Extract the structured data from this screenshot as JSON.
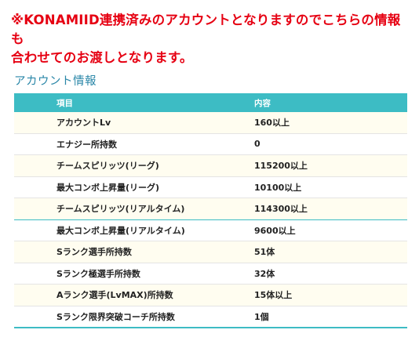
{
  "notice": {
    "line1": "※KONAMIID連携済みのアカウントとなりますのでこちらの情報も",
    "line2": "合わせてのお渡しとなります。"
  },
  "section": {
    "title": "アカウント情報"
  },
  "table": {
    "headers": {
      "item": "項目",
      "value": "内容"
    },
    "rows": [
      {
        "item": "アカウントLv",
        "value": "160以上"
      },
      {
        "item": "エナジー所持数",
        "value": "0"
      },
      {
        "item": "チームスピリッツ(リーグ)",
        "value": "115200以上"
      },
      {
        "item": "最大コンボ上昇量(リーグ)",
        "value": "10100以上"
      },
      {
        "item": "チームスピリッツ(リアルタイム)",
        "value": "114300以上"
      },
      {
        "item": "最大コンボ上昇量(リアルタイム)",
        "value": "9600以上"
      },
      {
        "item": "Sランク選手所持数",
        "value": "51体"
      },
      {
        "item": "Sランク極選手所持数",
        "value": "32体"
      },
      {
        "item": "Aランク選手(LvMAX)所持数",
        "value": "15体以上"
      },
      {
        "item": "Sランク限界突破コーチ所持数",
        "value": "1個"
      }
    ]
  },
  "colors": {
    "notice_red": "#e60012",
    "title_blue": "#2a87a8",
    "header_teal": "#3dbcc4",
    "row_cream": "#fffdf0"
  }
}
